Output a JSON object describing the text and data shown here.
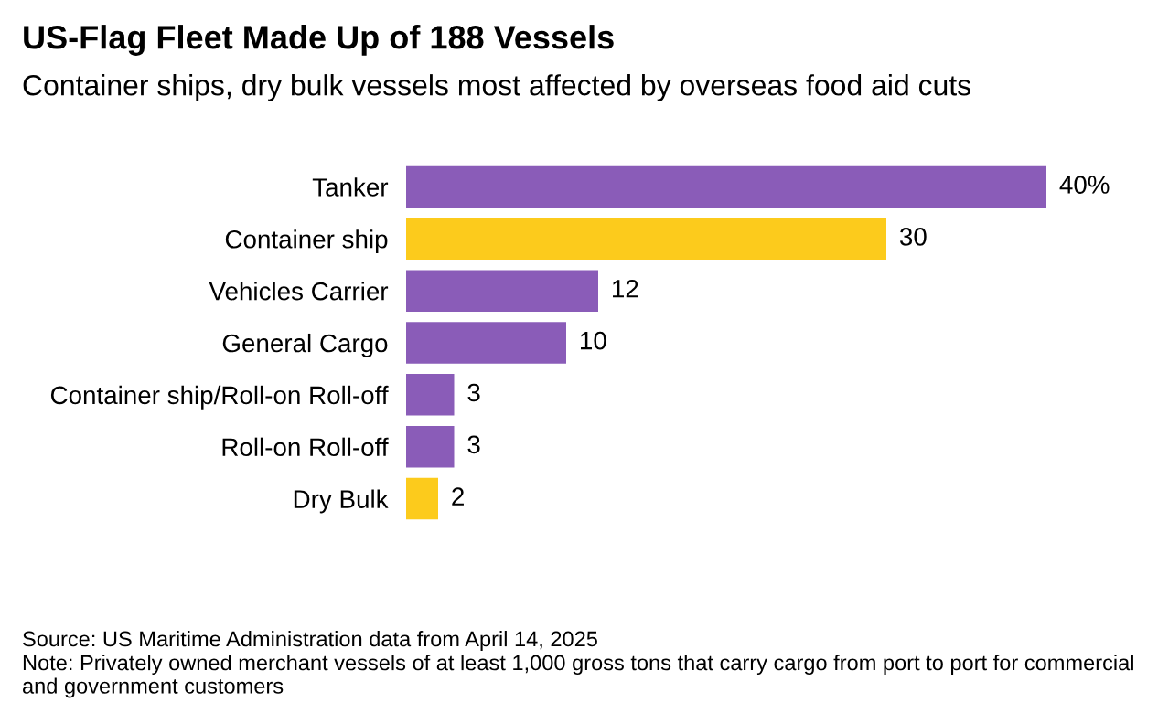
{
  "chart_data": {
    "type": "bar",
    "orientation": "horizontal",
    "title": "US-Flag Fleet Made Up of 188 Vessels",
    "subtitle": "Container ships, dry bulk vessels most affected by overseas food aid cuts",
    "categories": [
      "Tanker",
      "Container ship",
      "Vehicles Carrier",
      "General Cargo",
      "Container ship/Roll-on Roll-off",
      "Roll-on Roll-off",
      "Dry Bulk"
    ],
    "values": [
      40,
      30,
      12,
      10,
      3,
      3,
      2
    ],
    "colors": [
      "#8a5cb8",
      "#fccb1c",
      "#8a5cb8",
      "#8a5cb8",
      "#8a5cb8",
      "#8a5cb8",
      "#fccb1c"
    ],
    "value_labels": [
      "40%",
      "30",
      "12",
      "10",
      "3",
      "3",
      "2"
    ],
    "grid": false,
    "legend": false,
    "annotations": [
      "Source: US Maritime Administration data from April 14, 2025",
      "Note: Privately owned merchant vessels of at least 1,000 gross tons that carry cargo from port to port for commercial and government customers"
    ]
  }
}
